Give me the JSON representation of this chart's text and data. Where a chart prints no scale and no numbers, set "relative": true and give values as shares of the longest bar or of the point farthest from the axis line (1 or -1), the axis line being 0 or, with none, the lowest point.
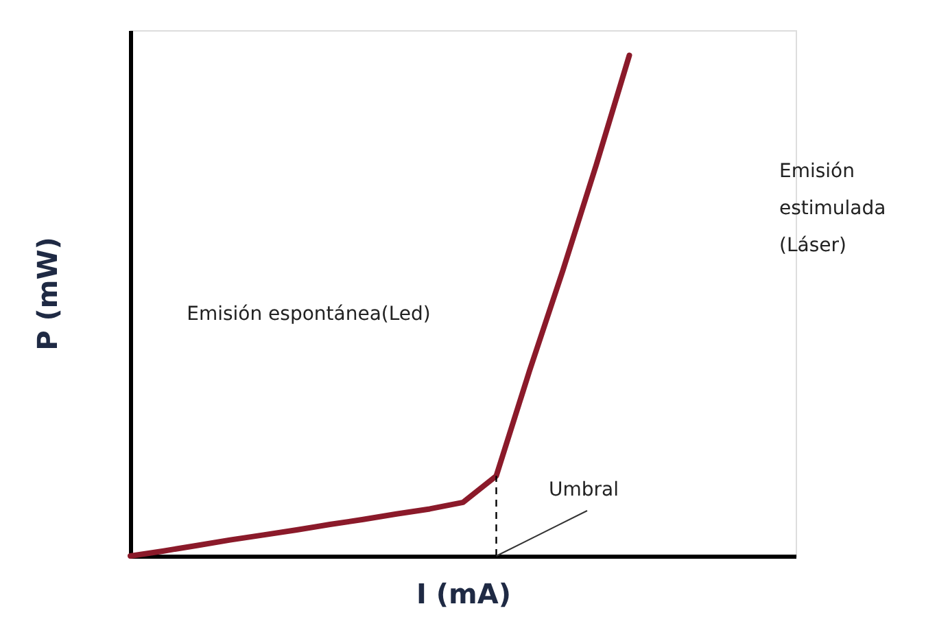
{
  "chart_data": {
    "type": "line",
    "relative": true,
    "xlabel": "I (mA)",
    "ylabel": "P (mW)",
    "categories": [
      null,
      null,
      null,
      null,
      null,
      null,
      null,
      null,
      null,
      null,
      null,
      null,
      null,
      null,
      null,
      null,
      null,
      null,
      null,
      null,
      null
    ],
    "series": [
      {
        "color": "#8b1a2a",
        "values": [
          0,
          0.01,
          0.021,
          0.032,
          0.042,
          0.052,
          0.063,
          0.073,
          0.084,
          0.094,
          0.107,
          0.16,
          0.37,
          0.57,
          0.78,
          1,
          null,
          null,
          null,
          null,
          null
        ]
      }
    ],
    "annotations": [
      "Emisión espontánea(Led)",
      "Emisión\nestimulada\n(Láser)",
      "Umbral"
    ]
  }
}
